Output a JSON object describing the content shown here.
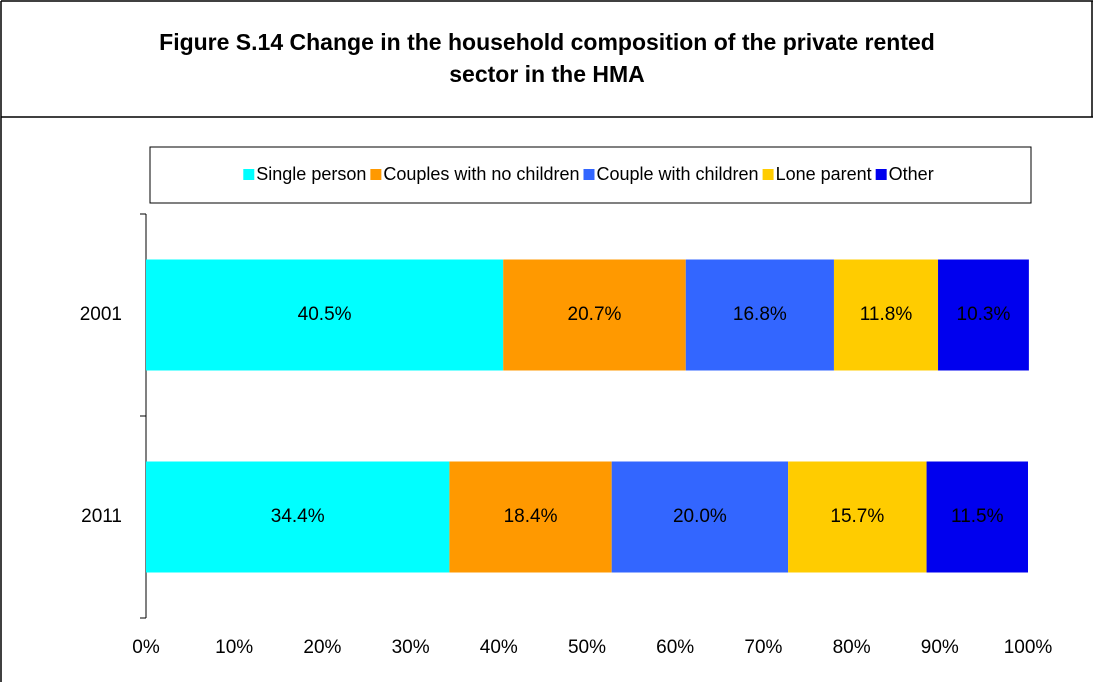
{
  "chart_data": {
    "type": "stacked_barh",
    "title": [
      "Figure S.14 Change in the household composition of the private rented",
      "sector in the HMA"
    ],
    "categories": [
      "2001",
      "2011"
    ],
    "series": [
      {
        "name": "Single person",
        "color": "#00ffff",
        "values": [
          40.5,
          34.4
        ],
        "value_labels": [
          "40.5%",
          "34.4%"
        ]
      },
      {
        "name": "Couples with no children",
        "color": "#ff9900",
        "values": [
          20.7,
          18.4
        ],
        "value_labels": [
          "20.7%",
          "18.4%"
        ]
      },
      {
        "name": "Couple with children",
        "color": "#3366ff",
        "values": [
          16.8,
          20.0
        ],
        "value_labels": [
          "16.8%",
          "20.0%"
        ]
      },
      {
        "name": "Lone parent",
        "color": "#ffcc00",
        "values": [
          11.8,
          15.7
        ],
        "value_labels": [
          "11.8%",
          "15.7%"
        ]
      },
      {
        "name": "Other",
        "color": "#0000ee",
        "values": [
          10.3,
          11.5
        ],
        "value_labels": [
          "10.3%",
          "11.5%"
        ]
      }
    ],
    "xlim": [
      0,
      100
    ],
    "xticks": [
      {
        "value": 0,
        "label": "0%"
      },
      {
        "value": 10,
        "label": "10%"
      },
      {
        "value": 20,
        "label": "20%"
      },
      {
        "value": 30,
        "label": "30%"
      },
      {
        "value": 40,
        "label": "40%"
      },
      {
        "value": 50,
        "label": "50%"
      },
      {
        "value": 60,
        "label": "60%"
      },
      {
        "value": 70,
        "label": "70%"
      },
      {
        "value": 80,
        "label": "80%"
      },
      {
        "value": 90,
        "label": "90%"
      },
      {
        "value": 100,
        "label": "100%"
      }
    ],
    "legend": "top"
  }
}
